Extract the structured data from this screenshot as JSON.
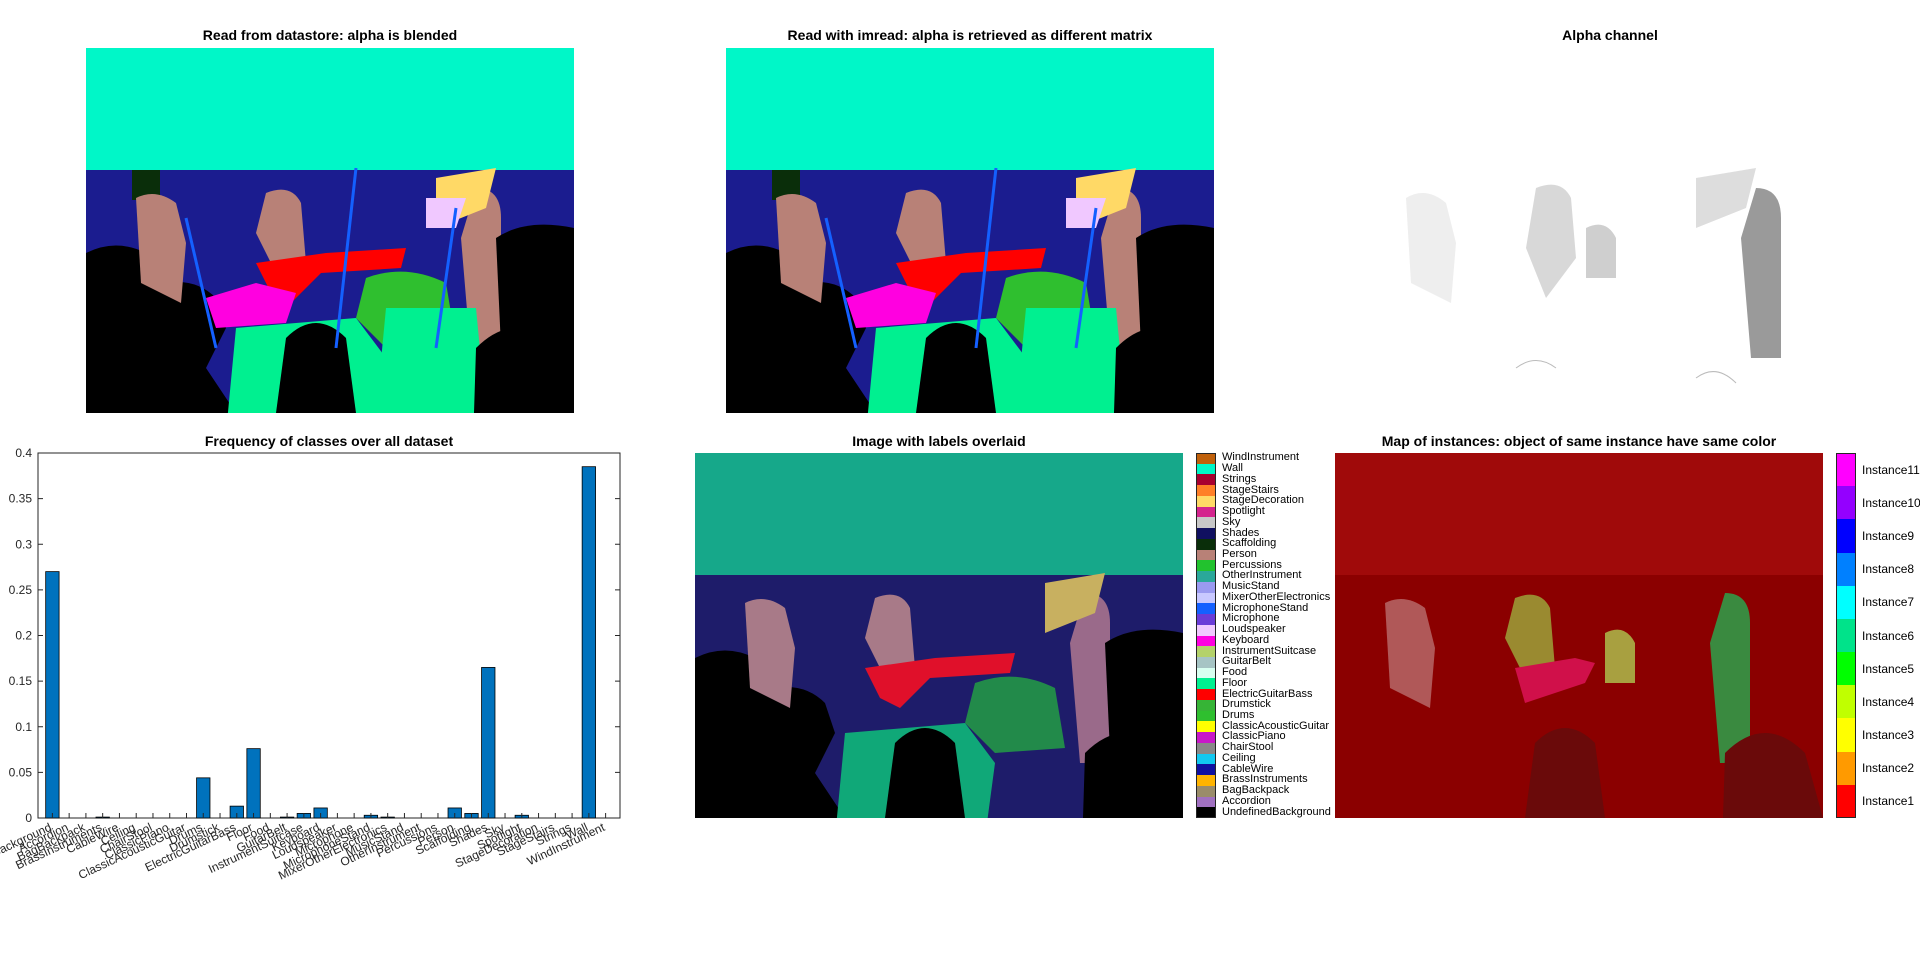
{
  "titles": {
    "datastore": "Read from datastore: alpha is blended",
    "imread": "Read with imread: alpha is retrieved as different matrix",
    "alpha": "Alpha channel",
    "frequency": "Frequency of classes over all dataset",
    "overlay": "Image with labels overlaid",
    "instances": "Map of instances: object of same instance have same color"
  },
  "colors": {
    "wall": "#00f7c8",
    "stage_blue": "#1b1c8f",
    "person": "#b88177",
    "guitar": "#ff0000",
    "drums": "#2fbf2f",
    "floor": "#00f090",
    "stage_deco": "#ffd966",
    "bar": "#0072bd",
    "instance_base": "#8b0000"
  },
  "chart_data": {
    "type": "bar",
    "title": "Frequency of classes over all dataset",
    "ylim": [
      0,
      0.4
    ],
    "yticks": [
      "0",
      "0.05",
      "0.1",
      "0.15",
      "0.2",
      "0.25",
      "0.3",
      "0.35",
      "0.4"
    ],
    "categories": [
      "Background",
      "Accordion",
      "BagBackpack",
      "BrassInstruments",
      "CableWire",
      "Ceiling",
      "ChairStool",
      "ClassicPiano",
      "ClassicAcousticGuitar",
      "Drums",
      "Drumstick",
      "ElectricGuitarBass",
      "Floor",
      "Food",
      "GuitarBelt",
      "InstrumentSuitcase",
      "Keyboard",
      "Loudspeaker",
      "Microphone",
      "MicrophoneStand",
      "MixerOtherElectronics",
      "MusicStand",
      "OtherInstrument",
      "Percussions",
      "Person",
      "Scaffolding",
      "Shades",
      "Sky",
      "Spotlight",
      "StageDecoration",
      "StageStairs",
      "Strings",
      "Wall",
      "WindInstrument"
    ],
    "values": [
      0.27,
      0,
      0,
      0.001,
      0,
      0,
      0,
      0,
      0,
      0.044,
      0,
      0.013,
      0.076,
      0,
      0.001,
      0.005,
      0.011,
      0,
      0,
      0.003,
      0.001,
      0,
      0,
      0,
      0.011,
      0.005,
      0.165,
      0,
      0.003,
      0,
      0,
      0,
      0.385,
      0
    ],
    "grid": false
  },
  "label_colorbar": {
    "entries": [
      {
        "label": "WindInstrument",
        "color": "#c0600a"
      },
      {
        "label": "Wall",
        "color": "#00f7c8"
      },
      {
        "label": "Strings",
        "color": "#a80030"
      },
      {
        "label": "StageStairs",
        "color": "#ff7f27"
      },
      {
        "label": "StageDecoration",
        "color": "#ffd966"
      },
      {
        "label": "Spotlight",
        "color": "#d4248e"
      },
      {
        "label": "Sky",
        "color": "#c8c8c8"
      },
      {
        "label": "Shades",
        "color": "#101060"
      },
      {
        "label": "Scaffolding",
        "color": "#0a2e0a"
      },
      {
        "label": "Person",
        "color": "#b88177"
      },
      {
        "label": "Percussions",
        "color": "#22c22e"
      },
      {
        "label": "OtherInstrument",
        "color": "#2aa89a"
      },
      {
        "label": "MusicStand",
        "color": "#9a9af0"
      },
      {
        "label": "MixerOtherElectronics",
        "color": "#c8c8ff"
      },
      {
        "label": "MicrophoneStand",
        "color": "#1460ff"
      },
      {
        "label": "Microphone",
        "color": "#6a3cd8"
      },
      {
        "label": "Loudspeaker",
        "color": "#f0c8ff"
      },
      {
        "label": "Keyboard",
        "color": "#ff00e0"
      },
      {
        "label": "InstrumentSuitcase",
        "color": "#b4d26a"
      },
      {
        "label": "GuitarBelt",
        "color": "#a6c4c4"
      },
      {
        "label": "Food",
        "color": "#d8fff0"
      },
      {
        "label": "Floor",
        "color": "#00f090"
      },
      {
        "label": "ElectricGuitarBass",
        "color": "#ff0000"
      },
      {
        "label": "Drumstick",
        "color": "#36b436"
      },
      {
        "label": "Drums",
        "color": "#2fbf2f"
      },
      {
        "label": "ClassicAcousticGuitar",
        "color": "#ffff00"
      },
      {
        "label": "ClassicPiano",
        "color": "#c818c8"
      },
      {
        "label": "ChairStool",
        "color": "#888888"
      },
      {
        "label": "Ceiling",
        "color": "#12c8f0"
      },
      {
        "label": "CableWire",
        "color": "#1010a0"
      },
      {
        "label": "BrassInstruments",
        "color": "#ffb400"
      },
      {
        "label": "BagBackpack",
        "color": "#9a8c6a"
      },
      {
        "label": "Accordion",
        "color": "#a070c0"
      },
      {
        "label": "UndefinedBackground",
        "color": "#000000"
      }
    ]
  },
  "instance_colorbar": {
    "entries": [
      {
        "label": "Instance11",
        "color": "#ff00ff"
      },
      {
        "label": "Instance10",
        "color": "#9400ff"
      },
      {
        "label": "Instance9",
        "color": "#0000ff"
      },
      {
        "label": "Instance8",
        "color": "#0080ff"
      },
      {
        "label": "Instance7",
        "color": "#00ffff"
      },
      {
        "label": "Instance6",
        "color": "#00e38a"
      },
      {
        "label": "Instance5",
        "color": "#00ff00"
      },
      {
        "label": "Instance4",
        "color": "#c0ff00"
      },
      {
        "label": "Instance3",
        "color": "#ffff00"
      },
      {
        "label": "Instance2",
        "color": "#ff9a00"
      },
      {
        "label": "Instance1",
        "color": "#ff0000"
      }
    ]
  }
}
